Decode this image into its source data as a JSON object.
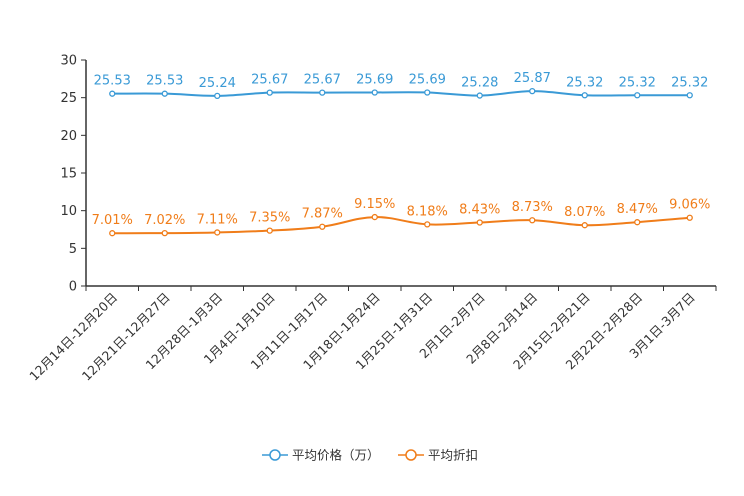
{
  "chart_data": {
    "type": "line",
    "title": "",
    "xlabel": "",
    "ylabel": "",
    "ylim": [
      0,
      30
    ],
    "yticks": [
      0,
      5,
      10,
      15,
      20,
      25,
      30
    ],
    "grid": false,
    "legend_position": "bottom-center",
    "categories": [
      "12月14日-12月20日",
      "12月21日-12月27日",
      "12月28日-1月3日",
      "1月4日-1月10日",
      "1月11日-1月17日",
      "1月18日-1月24日",
      "1月25日-1月31日",
      "2月1日-2月7日",
      "2月8日-2月14日",
      "2月15日-2月21日",
      "2月22日-2月28日",
      "3月1日-3月7日"
    ],
    "series": [
      {
        "name": "平均价格（万）",
        "color": "#3a9ad6",
        "values": [
          25.53,
          25.53,
          25.24,
          25.67,
          25.67,
          25.69,
          25.69,
          25.28,
          25.87,
          25.32,
          25.32,
          25.32
        ],
        "labels": [
          "25.53",
          "25.53",
          "25.24",
          "25.67",
          "25.67",
          "25.69",
          "25.69",
          "25.28",
          "25.87",
          "25.32",
          "25.32",
          "25.32"
        ]
      },
      {
        "name": "平均折扣",
        "color": "#f07d1a",
        "values": [
          7.01,
          7.02,
          7.11,
          7.35,
          7.87,
          9.15,
          8.18,
          8.43,
          8.73,
          8.07,
          8.47,
          9.06
        ],
        "labels": [
          "7.01%",
          "7.02%",
          "7.11%",
          "7.35%",
          "7.87%",
          "9.15%",
          "8.18%",
          "8.43%",
          "8.73%",
          "8.07%",
          "8.47%",
          "9.06%"
        ]
      }
    ]
  }
}
